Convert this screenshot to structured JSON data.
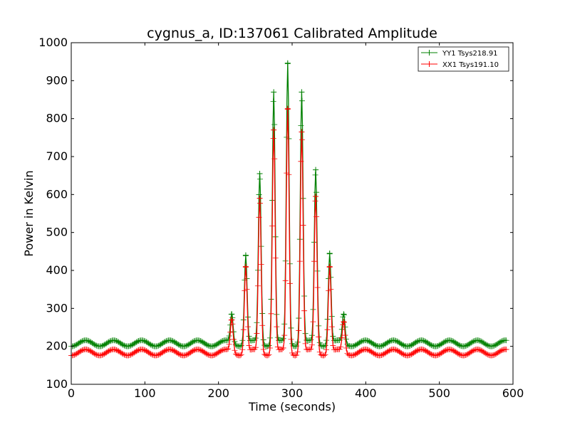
{
  "chart_data": {
    "type": "line",
    "title": "cygnus_a, ID:137061 Calibrated Amplitude",
    "xlabel": "Time (seconds)",
    "ylabel": "Power in Kelvin",
    "xlim": [
      0,
      600
    ],
    "ylim": [
      100,
      1000
    ],
    "xticks": [
      "0",
      "100",
      "200",
      "300",
      "400",
      "500",
      "600"
    ],
    "yticks": [
      "100",
      "200",
      "300",
      "400",
      "500",
      "600",
      "700",
      "800",
      "900",
      "1000"
    ],
    "grid": false,
    "legend_position": "top-right",
    "marker": "+",
    "series": [
      {
        "name": "YY1 Tsys218.91",
        "color": "#008000",
        "baseline": 208,
        "ripple": 8,
        "ripple_period_s": 38,
        "peaks": [
          {
            "x": 218,
            "y": 285
          },
          {
            "x": 237,
            "y": 440
          },
          {
            "x": 256,
            "y": 655
          },
          {
            "x": 275,
            "y": 870
          },
          {
            "x": 294,
            "y": 945
          },
          {
            "x": 313,
            "y": 870
          },
          {
            "x": 332,
            "y": 665
          },
          {
            "x": 351,
            "y": 445
          },
          {
            "x": 370,
            "y": 285
          }
        ]
      },
      {
        "name": "XX1 Tsys191.10",
        "color": "#ff0000",
        "baseline": 184,
        "ripple": 8,
        "ripple_period_s": 38,
        "peaks": [
          {
            "x": 218,
            "y": 270
          },
          {
            "x": 237,
            "y": 410
          },
          {
            "x": 256,
            "y": 590
          },
          {
            "x": 275,
            "y": 770
          },
          {
            "x": 294,
            "y": 825
          },
          {
            "x": 313,
            "y": 765
          },
          {
            "x": 332,
            "y": 595
          },
          {
            "x": 351,
            "y": 410
          },
          {
            "x": 370,
            "y": 265
          }
        ]
      }
    ]
  }
}
